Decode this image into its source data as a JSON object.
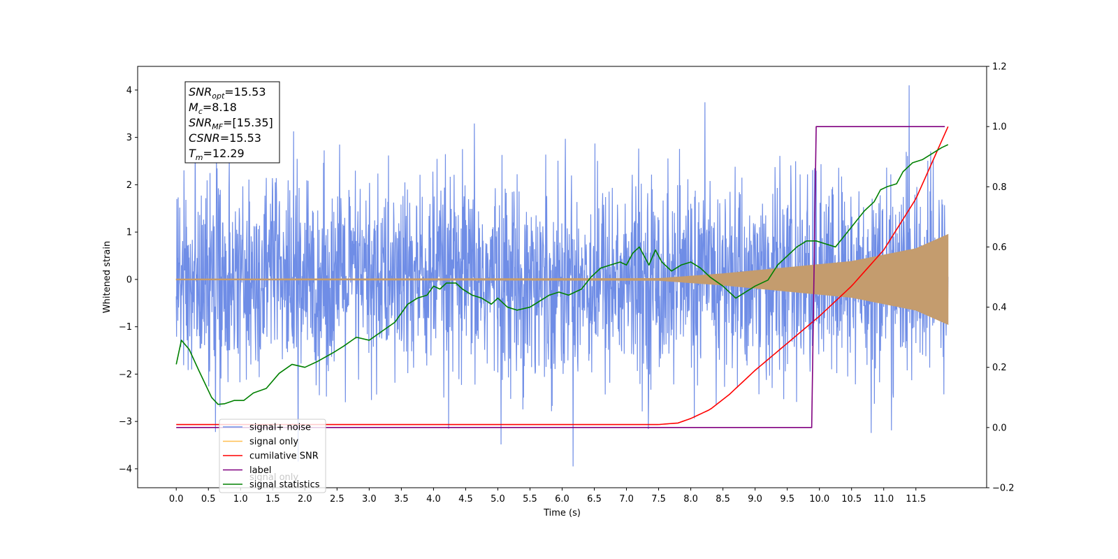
{
  "chart_data": {
    "type": "line",
    "xlabel": "Time (s)",
    "ylabel": "Whitened strain",
    "xlim": [
      -0.6,
      12.6
    ],
    "ylim": [
      -4.4,
      4.5
    ],
    "y2lim": [
      -0.2,
      1.2
    ],
    "x_ticks": [
      "0.0",
      "0.5",
      "1.0",
      "1.5",
      "2.0",
      "2.5",
      "3.0",
      "3.5",
      "4.0",
      "4.5",
      "5.0",
      "5.5",
      "6.0",
      "6.5",
      "7.0",
      "7.5",
      "8.0",
      "8.5",
      "9.0",
      "9.5",
      "10.0",
      "10.5",
      "11.0",
      "11.5"
    ],
    "y_ticks": [
      "4",
      "3",
      "2",
      "1",
      "0",
      "−1",
      "−2",
      "−3",
      "−4"
    ],
    "y2_ticks": [
      "1.2",
      "1.0",
      "0.8",
      "0.6",
      "0.4",
      "0.2",
      "0.0",
      "−0.2"
    ],
    "annotation": {
      "lines": [
        {
          "base": "SNR",
          "sub": "opt",
          "value": "=15.53"
        },
        {
          "base": "M",
          "sub": "c",
          "value": "=8.18"
        },
        {
          "base": "SNR",
          "sub": "MF",
          "value": "=[15.35]"
        },
        {
          "base": "CSNR",
          "sub": "",
          "value": "=15.53"
        },
        {
          "base": "T",
          "sub": "m",
          "value": "=12.29"
        }
      ]
    },
    "legend": {
      "placement": "lower-left",
      "entries": [
        {
          "name": "signal+ noise",
          "color": "#6f8de6"
        },
        {
          "name": "signal only",
          "color": "#ffbf50"
        },
        {
          "name": "cumilative SNR",
          "color": "#ff0000"
        },
        {
          "name": "label",
          "color": "#800080"
        },
        {
          "name": "signal statistics",
          "color": "#008000"
        }
      ],
      "hidden_entry": "signal only"
    },
    "series": [
      {
        "name": "signal+ noise",
        "axis": "left",
        "x_range": [
          0,
          12
        ],
        "noise_std": 1.05,
        "color": "#6f8de6"
      },
      {
        "name": "signal only",
        "axis": "left",
        "x_range": [
          0,
          12
        ],
        "envelope_t": [
          0,
          7.5,
          8.5,
          9.5,
          10.5,
          11.5,
          12.0
        ],
        "envelope_a": [
          0.01,
          0.02,
          0.12,
          0.25,
          0.38,
          0.65,
          0.95
        ],
        "color": "#c49c6e"
      },
      {
        "name": "cumilative SNR",
        "axis": "right",
        "x": [
          0,
          7.5,
          7.8,
          8.0,
          8.3,
          8.6,
          9.0,
          9.5,
          10.0,
          10.5,
          11.0,
          11.5,
          12.0
        ],
        "y": [
          0.01,
          0.01,
          0.015,
          0.03,
          0.06,
          0.11,
          0.19,
          0.28,
          0.37,
          0.47,
          0.59,
          0.76,
          1.0
        ],
        "color": "#ff0000"
      },
      {
        "name": "label",
        "axis": "right",
        "x": [
          0,
          9.88,
          9.95,
          11.95
        ],
        "y": [
          0.0,
          0.0,
          1.0,
          1.0
        ],
        "color": "#800080"
      },
      {
        "name": "signal statistics",
        "axis": "right",
        "x": [
          0,
          0.08,
          0.2,
          0.35,
          0.55,
          0.65,
          0.75,
          0.9,
          1.05,
          1.2,
          1.4,
          1.6,
          1.8,
          2.0,
          2.2,
          2.45,
          2.6,
          2.8,
          3.0,
          3.2,
          3.4,
          3.6,
          3.75,
          3.9,
          4.0,
          4.1,
          4.2,
          4.35,
          4.45,
          4.6,
          4.75,
          4.9,
          5.0,
          5.15,
          5.3,
          5.5,
          5.65,
          5.8,
          5.95,
          6.1,
          6.3,
          6.45,
          6.6,
          6.75,
          6.9,
          7.0,
          7.1,
          7.2,
          7.35,
          7.45,
          7.55,
          7.7,
          7.85,
          8.0,
          8.15,
          8.3,
          8.5,
          8.7,
          8.85,
          9.0,
          9.2,
          9.35,
          9.5,
          9.65,
          9.8,
          9.95,
          10.1,
          10.25,
          10.4,
          10.55,
          10.7,
          10.85,
          10.95,
          11.05,
          11.2,
          11.3,
          11.45,
          11.6,
          11.75,
          11.9,
          12.0
        ],
        "y": [
          0.21,
          0.29,
          0.26,
          0.19,
          0.1,
          0.077,
          0.079,
          0.09,
          0.09,
          0.115,
          0.13,
          0.18,
          0.21,
          0.2,
          0.22,
          0.25,
          0.27,
          0.3,
          0.29,
          0.32,
          0.35,
          0.41,
          0.43,
          0.44,
          0.47,
          0.46,
          0.48,
          0.48,
          0.46,
          0.44,
          0.43,
          0.41,
          0.43,
          0.4,
          0.39,
          0.4,
          0.42,
          0.44,
          0.45,
          0.44,
          0.46,
          0.5,
          0.53,
          0.54,
          0.55,
          0.54,
          0.58,
          0.6,
          0.54,
          0.59,
          0.55,
          0.52,
          0.54,
          0.55,
          0.53,
          0.5,
          0.47,
          0.43,
          0.45,
          0.47,
          0.49,
          0.54,
          0.57,
          0.6,
          0.62,
          0.62,
          0.61,
          0.6,
          0.64,
          0.68,
          0.72,
          0.75,
          0.79,
          0.8,
          0.81,
          0.85,
          0.88,
          0.89,
          0.91,
          0.93,
          0.94
        ],
        "color": "#008000"
      }
    ]
  }
}
